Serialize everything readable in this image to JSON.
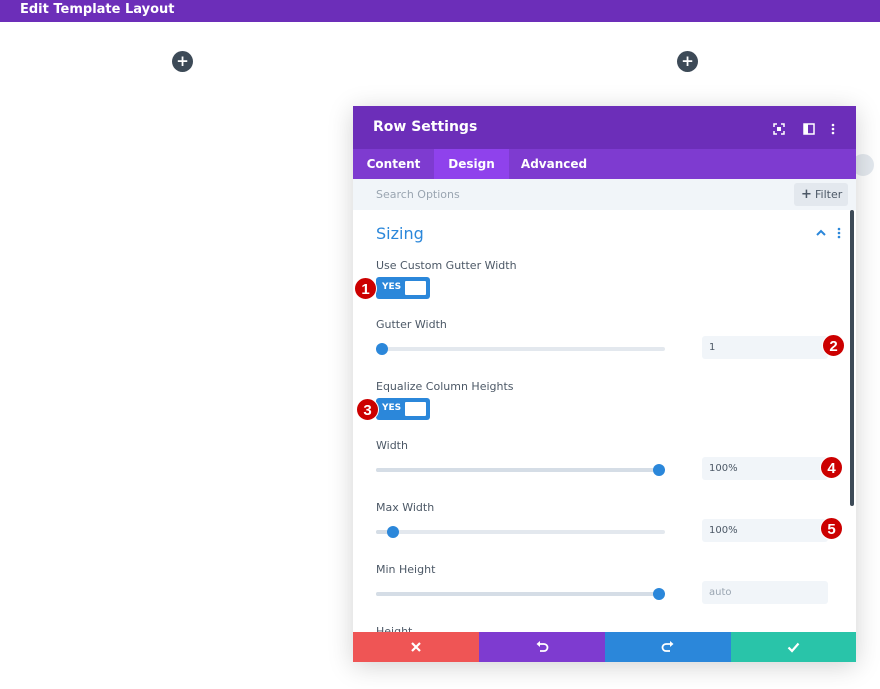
{
  "topbar": {
    "title": "Edit Template Layout"
  },
  "add_buttons": {
    "glyph": "+"
  },
  "modal": {
    "title": "Row Settings",
    "header_icons": [
      "focus-icon",
      "split-view-icon",
      "more-options-icon"
    ],
    "tabs": [
      {
        "label": "Content",
        "active": false
      },
      {
        "label": "Design",
        "active": true
      },
      {
        "label": "Advanced",
        "active": false
      }
    ],
    "search": {
      "placeholder": "Search Options"
    },
    "filter": {
      "label": "Filter"
    },
    "section": {
      "title": "Sizing"
    },
    "fields": {
      "custom_gutter": {
        "label": "Use Custom Gutter Width",
        "value": "YES"
      },
      "gutter_width": {
        "label": "Gutter Width",
        "value": "1",
        "level": 0.0
      },
      "equalize": {
        "label": "Equalize Column Heights",
        "value": "YES"
      },
      "width": {
        "label": "Width",
        "value": "100%",
        "level": 1.0
      },
      "max_width": {
        "label": "Max Width",
        "value": "100%",
        "level": 0.06
      },
      "min_height": {
        "label": "Min Height",
        "value": "auto",
        "level": 1.0
      },
      "height": {
        "label": "Height"
      }
    },
    "footer": {
      "cancel_color": "#ef5555",
      "undo_color": "#7e3bd0",
      "redo_color": "#2b87da",
      "save_color": "#29c4a9"
    }
  },
  "annotations": [
    "1",
    "2",
    "3",
    "4",
    "5"
  ],
  "colors": {
    "brand_purple": "#6c2eb9",
    "accent_blue": "#2b87da",
    "badge_red": "#cc0000"
  }
}
